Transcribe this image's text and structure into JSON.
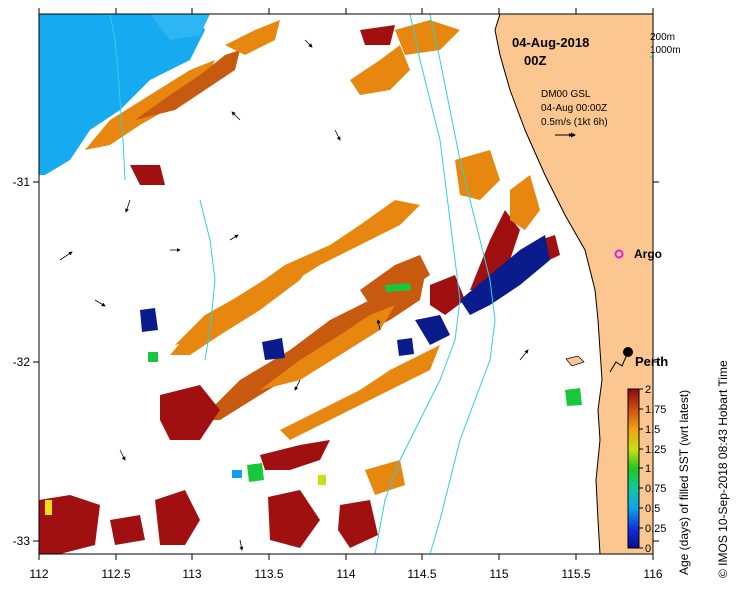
{
  "map": {
    "date_label": "04-Aug-2018",
    "time_label": "00Z",
    "scale": {
      "contour_200": "200m",
      "contour_1000": "1000m"
    },
    "current_legend": {
      "line1": "DM00 GSL",
      "line2": "04-Aug 00:00Z",
      "line3": "0.5m/s (1kt 6h)"
    },
    "places": [
      {
        "name": "Argo",
        "lon": 115.74,
        "lat": -31.4
      },
      {
        "name": "Perth",
        "lon": 115.86,
        "lat": -31.95
      }
    ],
    "x_ticks": [
      "112",
      "112.5",
      "113",
      "113.5",
      "114",
      "114.5",
      "115",
      "115.5",
      "116"
    ],
    "y_ticks": [
      "-31",
      "-32",
      "-33"
    ],
    "x_range": [
      112,
      116
    ],
    "y_range": [
      -33.1,
      -30.1
    ]
  },
  "colorbar": {
    "title": "Age (days) of filled SST (wrt latest)",
    "ticks": [
      "0",
      "0.25",
      "0.5",
      "0.75",
      "1",
      "1.25",
      "1.5",
      "1.75",
      "2"
    ],
    "range": [
      0,
      2
    ]
  },
  "credit": "© IMOS 10-Sep-2018 08:43 Hobart Time",
  "colors": {
    "land": "#FCC690",
    "orange": "#E8870F",
    "dark_orange": "#C85A10",
    "red": "#A01010",
    "navy": "#0A1C8C",
    "blue": "#1010A0",
    "light_blue": "#16AAF0",
    "green": "#18C83C",
    "isobath": "#30D0E0"
  }
}
